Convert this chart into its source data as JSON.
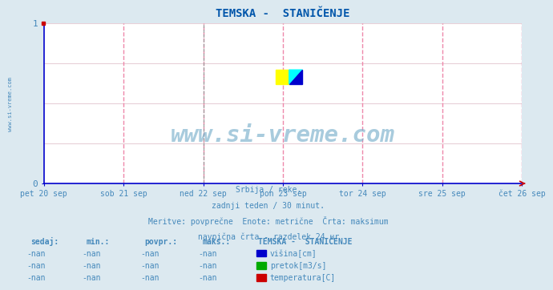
{
  "title": "TEMSKA -  STANIČENJE",
  "background_color": "#dce9f0",
  "plot_bg_color": "#ffffff",
  "xlim": [
    0,
    1
  ],
  "ylim": [
    0,
    1
  ],
  "yticks": [
    0,
    1
  ],
  "xtick_labels": [
    "pet 20 sep",
    "sob 21 sep",
    "ned 22 sep",
    "pon 23 sep",
    "tor 24 sep",
    "sre 25 sep",
    "čet 26 sep"
  ],
  "xtick_positions": [
    0.0,
    0.1667,
    0.3333,
    0.5,
    0.6667,
    0.8333,
    1.0
  ],
  "magenta_dashed_vlines": [
    0.1667,
    0.3333,
    0.5,
    0.6667,
    0.8333,
    1.0
  ],
  "gray_dashed_vlines": [
    0.3333
  ],
  "hlines": [
    0.0,
    0.25,
    0.5,
    0.75,
    1.0
  ],
  "watermark": "www.si-vreme.com",
  "watermark_color": "#7ab0cc",
  "side_text": "www.si-vreme.com",
  "subtitle_lines": [
    "Srbija / reke.",
    "zadnji teden / 30 minut.",
    "Meritve: povprečne  Enote: metrične  Črta: maksimum",
    "navpična črta - razdelek 24 ur"
  ],
  "table_header": [
    "sedaj:",
    "min.:",
    "povpr.:",
    "maks.:",
    "TEMSKA -  STANIČENJE"
  ],
  "table_rows": [
    [
      "-nan",
      "-nan",
      "-nan",
      "-nan",
      "višina[cm]",
      "#0000cc"
    ],
    [
      "-nan",
      "-nan",
      "-nan",
      "-nan",
      "pretok[m3/s]",
      "#00aa00"
    ],
    [
      "-nan",
      "-nan",
      "-nan",
      "-nan",
      "temperatura[C]",
      "#cc0000"
    ]
  ],
  "axis_color": "#0000cc",
  "tick_color": "#4488bb",
  "grid_color": "#e8d0d8",
  "magenta_color": "#ee88aa",
  "title_color": "#0055aa",
  "title_fontsize": 10,
  "font_color": "#4488bb",
  "label_font_color": "#5599bb"
}
